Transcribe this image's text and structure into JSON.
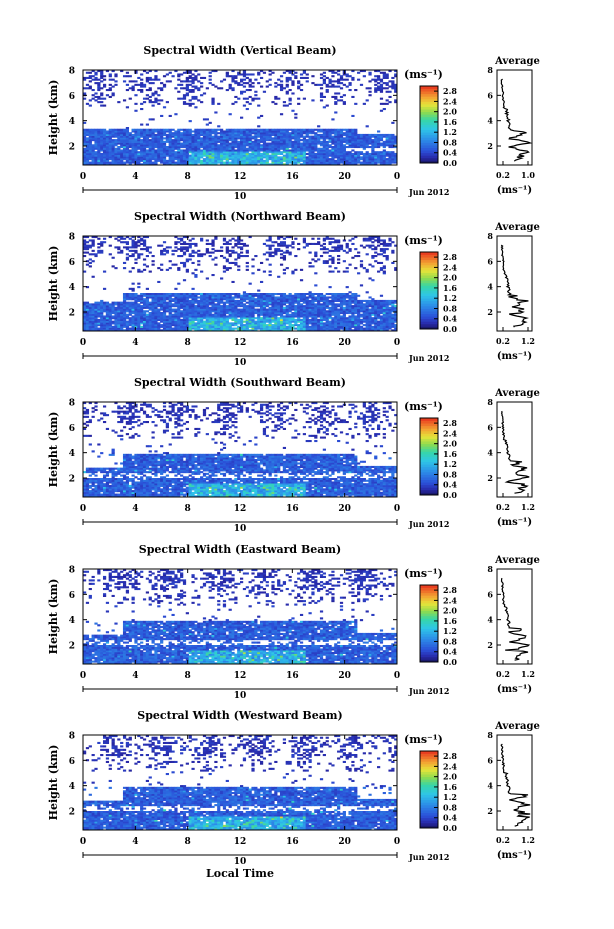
{
  "chart_data": [
    {
      "type": "heatmap",
      "title": "Spectral Width (Vertical Beam)",
      "ylabel": "Height (km)",
      "x_ticks": [
        "0",
        "4",
        "8",
        "12",
        "16",
        "20",
        "0"
      ],
      "y_ticks": [
        "2",
        "4",
        "6",
        "8"
      ],
      "date_day": "10",
      "date_label": "Jun 2012",
      "colorbar": {
        "unit": "(ms⁻¹)",
        "ticks": [
          "0.0",
          "0.4",
          "0.8",
          "1.2",
          "1.6",
          "2.0",
          "2.4",
          "2.8"
        ],
        "range": [
          0,
          3.0
        ]
      },
      "profile": {
        "title": "Average",
        "xlabel": "(ms⁻¹)",
        "x_ticks": [
          "0.2",
          "1.0"
        ],
        "y_ticks": [
          "2",
          "4",
          "6",
          "8"
        ]
      },
      "xlim": [
        0,
        24
      ],
      "ylim": [
        0.5,
        8
      ]
    },
    {
      "type": "heatmap",
      "title": "Spectral Width (Northward Beam)",
      "ylabel": "Height (km)",
      "x_ticks": [
        "0",
        "4",
        "8",
        "12",
        "16",
        "20",
        "0"
      ],
      "y_ticks": [
        "2",
        "4",
        "6",
        "8"
      ],
      "date_day": "10",
      "date_label": "Jun 2012",
      "colorbar": {
        "unit": "(ms⁻¹)",
        "ticks": [
          "0.0",
          "0.4",
          "0.8",
          "1.2",
          "1.6",
          "2.0",
          "2.4",
          "2.8"
        ],
        "range": [
          0,
          3.0
        ]
      },
      "profile": {
        "title": "Average",
        "xlabel": "(ms⁻¹)",
        "x_ticks": [
          "0.2",
          "1.2"
        ],
        "y_ticks": [
          "2",
          "4",
          "6",
          "8"
        ]
      },
      "xlim": [
        0,
        24
      ],
      "ylim": [
        0.5,
        8
      ]
    },
    {
      "type": "heatmap",
      "title": "Spectral Width (Southward Beam)",
      "ylabel": "Height (km)",
      "x_ticks": [
        "0",
        "4",
        "8",
        "12",
        "16",
        "20",
        "0"
      ],
      "y_ticks": [
        "2",
        "4",
        "6",
        "8"
      ],
      "date_day": "10",
      "date_label": "Jun 2012",
      "colorbar": {
        "unit": "(ms⁻¹)",
        "ticks": [
          "0.0",
          "0.4",
          "0.8",
          "1.2",
          "1.6",
          "2.0",
          "2.4",
          "2.8"
        ],
        "range": [
          0,
          3.0
        ]
      },
      "profile": {
        "title": "Average",
        "xlabel": "(ms⁻¹)",
        "x_ticks": [
          "0.2",
          "1.2"
        ],
        "y_ticks": [
          "2",
          "4",
          "6",
          "8"
        ]
      },
      "xlim": [
        0,
        24
      ],
      "ylim": [
        0.5,
        8
      ]
    },
    {
      "type": "heatmap",
      "title": "Spectral Width (Eastward Beam)",
      "ylabel": "Height (km)",
      "x_ticks": [
        "0",
        "4",
        "8",
        "12",
        "16",
        "20",
        "0"
      ],
      "y_ticks": [
        "2",
        "4",
        "6",
        "8"
      ],
      "date_day": "10",
      "date_label": "Jun 2012",
      "colorbar": {
        "unit": "(ms⁻¹)",
        "ticks": [
          "0.0",
          "0.4",
          "0.8",
          "1.2",
          "1.6",
          "2.0",
          "2.4",
          "2.8"
        ],
        "range": [
          0,
          3.0
        ]
      },
      "profile": {
        "title": "Average",
        "xlabel": "(ms⁻¹)",
        "x_ticks": [
          "0.2",
          "1.2"
        ],
        "y_ticks": [
          "2",
          "4",
          "6",
          "8"
        ]
      },
      "xlim": [
        0,
        24
      ],
      "ylim": [
        0.5,
        8
      ]
    },
    {
      "type": "heatmap",
      "title": "Spectral Width (Westward Beam)",
      "ylabel": "Height (km)",
      "xlabel": "Local Time",
      "x_ticks": [
        "0",
        "4",
        "8",
        "12",
        "16",
        "20",
        "0"
      ],
      "y_ticks": [
        "2",
        "4",
        "6",
        "8"
      ],
      "date_day": "10",
      "date_label": "Jun 2012",
      "colorbar": {
        "unit": "(ms⁻¹)",
        "ticks": [
          "0.0",
          "0.4",
          "0.8",
          "1.2",
          "1.6",
          "2.0",
          "2.4",
          "2.8"
        ],
        "range": [
          0,
          3.0
        ]
      },
      "profile": {
        "title": "Average",
        "xlabel": "(ms⁻¹)",
        "x_ticks": [
          "0.2",
          "1.2"
        ],
        "y_ticks": [
          "2",
          "4",
          "6",
          "8"
        ]
      },
      "xlim": [
        0,
        24
      ],
      "ylim": [
        0.5,
        8
      ]
    }
  ]
}
